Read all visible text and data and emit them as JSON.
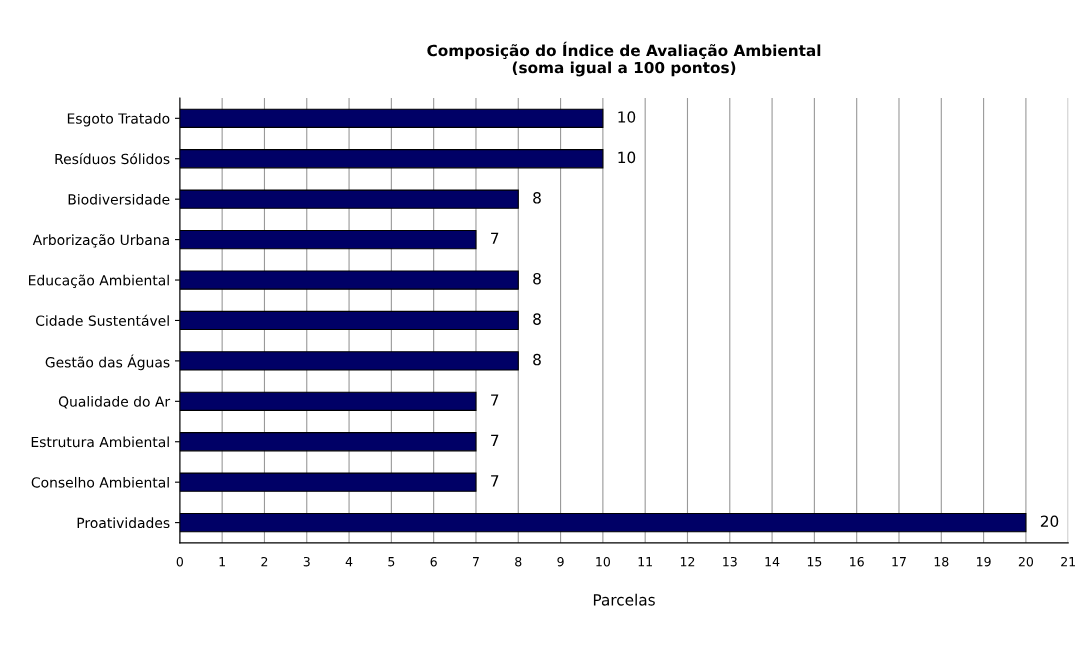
{
  "chart_data": {
    "type": "bar",
    "orientation": "horizontal",
    "title": "Composição do Índice de Avaliação Ambiental\n(soma igual a 100 pontos)",
    "xlabel": "Parcelas",
    "categories": [
      "Esgoto Tratado",
      "Resíduos Sólidos",
      "Biodiversidade",
      "Arborização Urbana",
      "Educação Ambiental",
      "Cidade Sustentável",
      "Gestão das Águas",
      "Qualidade do Ar",
      "Estrutura Ambiental",
      "Conselho Ambiental",
      "Proatividades"
    ],
    "values": [
      10,
      10,
      8,
      7,
      8,
      8,
      8,
      7,
      7,
      7,
      20
    ],
    "color": "#000066",
    "xlim": [
      0,
      21
    ],
    "xticks": [
      0,
      1,
      2,
      3,
      4,
      5,
      6,
      7,
      8,
      9,
      10,
      11,
      12,
      13,
      14,
      15,
      16,
      17,
      18,
      19,
      20,
      21
    ],
    "grid": "x",
    "data_labels": true,
    "legend": false
  }
}
